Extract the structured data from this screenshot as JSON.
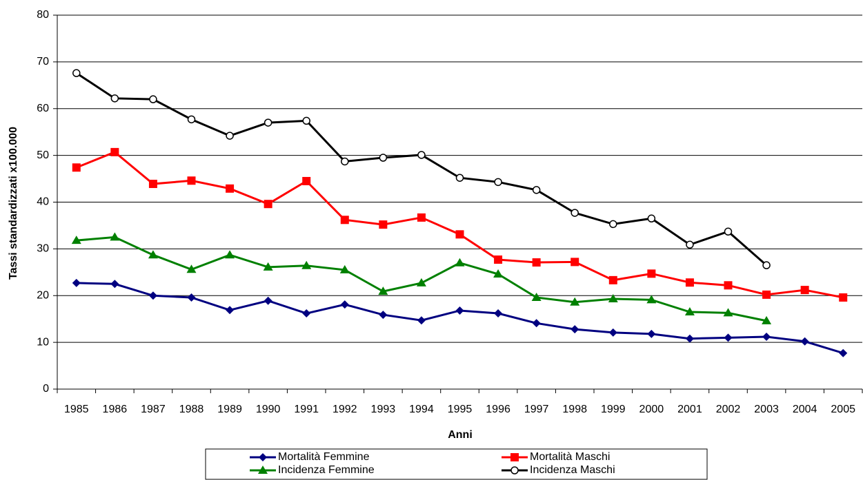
{
  "chart_data": {
    "type": "line",
    "ylabel": "Tassi standardizzati x100.000",
    "xlabel": "Anni",
    "categories": [
      "1985",
      "1986",
      "1987",
      "1988",
      "1989",
      "1990",
      "1991",
      "1992",
      "1993",
      "1994",
      "1995",
      "1996",
      "1997",
      "1998",
      "1999",
      "2000",
      "2001",
      "2002",
      "2003",
      "2004",
      "2005"
    ],
    "series": [
      {
        "name": "Mortalità Femmine",
        "color": "#000080",
        "marker": "diamond",
        "values": [
          22.7,
          22.5,
          20.0,
          19.6,
          16.9,
          18.9,
          16.2,
          18.1,
          15.9,
          14.7,
          16.8,
          16.2,
          14.1,
          12.8,
          12.1,
          11.8,
          10.8,
          11.0,
          11.2,
          10.2,
          7.7
        ]
      },
      {
        "name": "Mortalità Maschi",
        "color": "#ff0000",
        "marker": "square",
        "values": [
          47.4,
          50.7,
          43.9,
          44.6,
          42.9,
          39.6,
          44.5,
          36.2,
          35.2,
          36.7,
          33.1,
          27.7,
          27.1,
          27.2,
          23.3,
          24.7,
          22.8,
          22.2,
          20.2,
          21.2,
          19.6
        ]
      },
      {
        "name": "Incidenza Femmine",
        "color": "#008000",
        "marker": "triangle",
        "values": [
          31.8,
          32.5,
          28.7,
          25.6,
          28.7,
          26.1,
          26.4,
          25.5,
          20.9,
          22.7,
          27.0,
          24.6,
          19.6,
          18.6,
          19.3,
          19.1,
          16.5,
          16.3,
          14.6,
          null,
          null
        ]
      },
      {
        "name": "Incidenza Maschi",
        "color": "#000000",
        "marker": "circle",
        "values": [
          67.6,
          62.2,
          62.0,
          57.7,
          54.2,
          57.0,
          57.4,
          48.7,
          49.5,
          50.1,
          45.2,
          44.3,
          42.6,
          37.7,
          35.3,
          36.5,
          30.9,
          33.7,
          26.5,
          null,
          null
        ]
      }
    ],
    "ylim": [
      0,
      80
    ],
    "yticks": [
      0,
      10,
      20,
      30,
      40,
      50,
      60,
      70,
      80
    ],
    "grid": true,
    "legend": "bottom"
  }
}
